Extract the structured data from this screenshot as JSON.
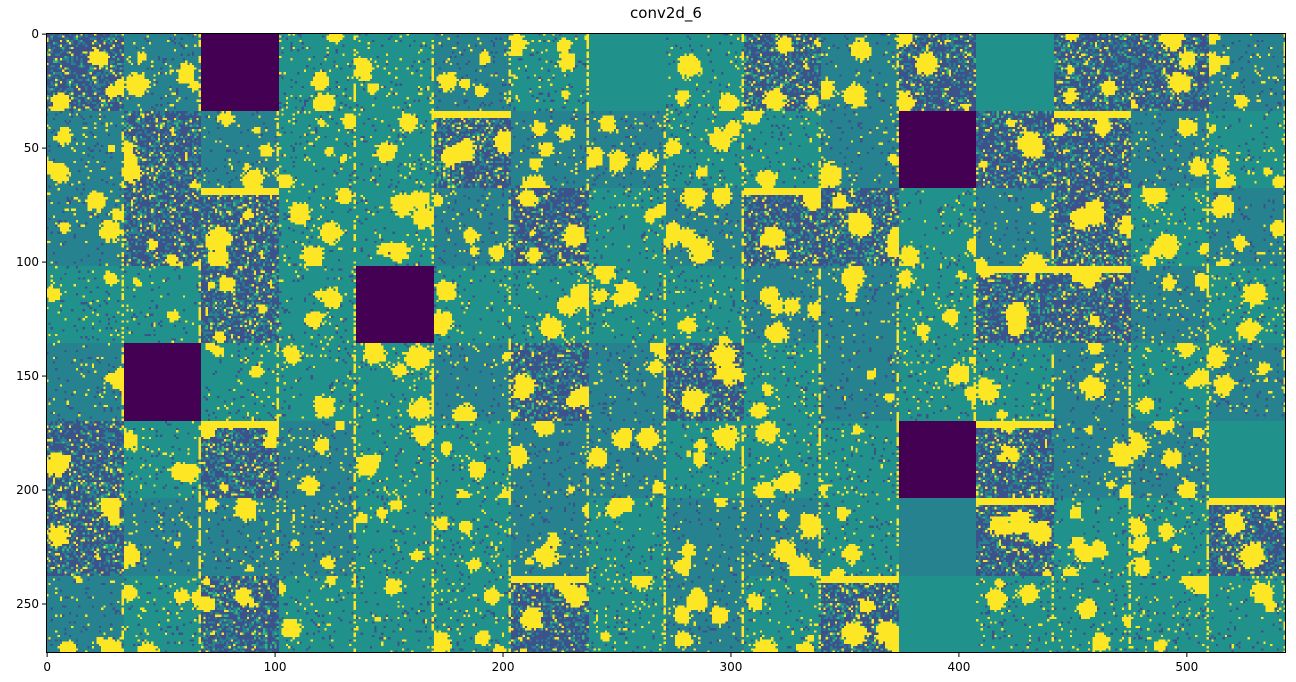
{
  "chart_data": {
    "type": "heatmap",
    "title": "conv2d_6",
    "colormap": "viridis",
    "xlim": [
      -0.5,
      543.5
    ],
    "ylim": [
      271.5,
      -0.5
    ],
    "xticks": [
      0,
      100,
      200,
      300,
      400,
      500
    ],
    "yticks": [
      0,
      50,
      100,
      150,
      200,
      250
    ],
    "grid": false,
    "grid_layout": {
      "rows": 8,
      "cols": 16,
      "tile_size": 34
    },
    "dead_channels": [
      [
        0,
        2
      ],
      [
        1,
        11
      ],
      [
        3,
        4
      ],
      [
        4,
        1
      ],
      [
        5,
        11
      ]
    ],
    "flat_channels": [
      [
        0,
        7
      ],
      [
        0,
        12
      ],
      [
        5,
        15
      ],
      [
        6,
        11
      ],
      [
        7,
        11
      ]
    ],
    "dense_channels": [
      [
        0,
        0
      ],
      [
        0,
        9
      ],
      [
        0,
        11
      ],
      [
        0,
        13
      ],
      [
        0,
        14
      ],
      [
        1,
        1
      ],
      [
        1,
        5
      ],
      [
        1,
        12
      ],
      [
        1,
        13
      ],
      [
        2,
        1
      ],
      [
        2,
        2
      ],
      [
        2,
        6
      ],
      [
        2,
        9
      ],
      [
        2,
        10
      ],
      [
        2,
        13
      ],
      [
        3,
        2
      ],
      [
        3,
        12
      ],
      [
        3,
        13
      ],
      [
        4,
        8
      ],
      [
        4,
        6
      ],
      [
        5,
        0
      ],
      [
        5,
        2
      ],
      [
        5,
        12
      ],
      [
        6,
        0
      ],
      [
        6,
        12
      ],
      [
        6,
        15
      ],
      [
        7,
        2
      ],
      [
        7,
        6
      ],
      [
        7,
        10
      ]
    ],
    "colors": {
      "low": "#440154",
      "mid": "#21918c",
      "high": "#fde725",
      "blue": "#3b528b"
    }
  }
}
